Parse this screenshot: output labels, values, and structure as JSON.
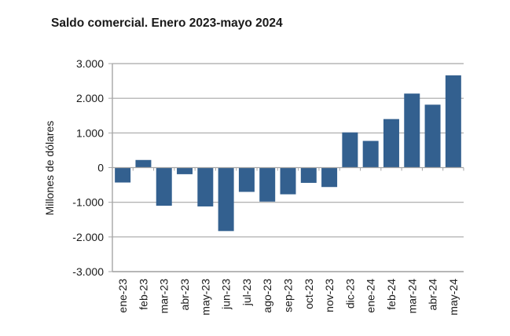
{
  "chart_data": {
    "type": "bar",
    "title": "Saldo comercial. Enero 2023-mayo 2024",
    "xlabel": "",
    "ylabel": "Millones de dólares",
    "ylim": [
      -3000,
      3000
    ],
    "yticks": [
      3000,
      2000,
      1000,
      0,
      -1000,
      -2000,
      -3000
    ],
    "ytick_labels": [
      "3.000",
      "2.000",
      "1.000",
      "0",
      "-1.000",
      "-2.000",
      "-3.000"
    ],
    "grid": true,
    "legend": "none",
    "bar_color": "#33608f",
    "categories": [
      "ene-23",
      "feb-23",
      "mar-23",
      "abr-23",
      "may-23",
      "jun-23",
      "jul-23",
      "ago-23",
      "sep-23",
      "oct-23",
      "nov-23",
      "dic-23",
      "ene-24",
      "feb-24",
      "mar-24",
      "abr-24",
      "may-24"
    ],
    "values": [
      -430,
      220,
      -1100,
      -190,
      -1120,
      -1830,
      -700,
      -980,
      -770,
      -440,
      -560,
      1015,
      770,
      1400,
      2135,
      1815,
      2660
    ]
  }
}
